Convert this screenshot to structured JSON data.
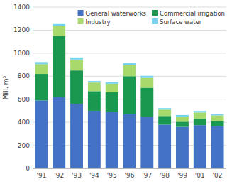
{
  "chart_data": {
    "type": "bar",
    "stacked": true,
    "ylabel": "Mill. m³",
    "categories": [
      "'91",
      "'92",
      "'93",
      "'94",
      "'95",
      "'96",
      "'97",
      "'98",
      "'99",
      "'01",
      "'02"
    ],
    "series": [
      {
        "name": "General waterworks",
        "color": "#4472c4",
        "values": [
          590,
          620,
          560,
          500,
          490,
          470,
          450,
          380,
          360,
          375,
          365
        ]
      },
      {
        "name": "Commercial irrigation",
        "color": "#1a9850",
        "values": [
          230,
          530,
          290,
          170,
          170,
          330,
          250,
          75,
          45,
          55,
          45
        ]
      },
      {
        "name": "Industry",
        "color": "#a8d96c",
        "values": [
          85,
          85,
          95,
          75,
          75,
          95,
          85,
          55,
          45,
          55,
          50
        ]
      },
      {
        "name": "Surface water",
        "color": "#74d4f0",
        "values": [
          18,
          18,
          18,
          13,
          13,
          18,
          18,
          13,
          13,
          13,
          13
        ]
      }
    ],
    "ylim": [
      0,
      1400
    ],
    "yticks": [
      0,
      200,
      400,
      600,
      800,
      1000,
      1200,
      1400
    ],
    "grid": true,
    "legend": "upper right"
  }
}
